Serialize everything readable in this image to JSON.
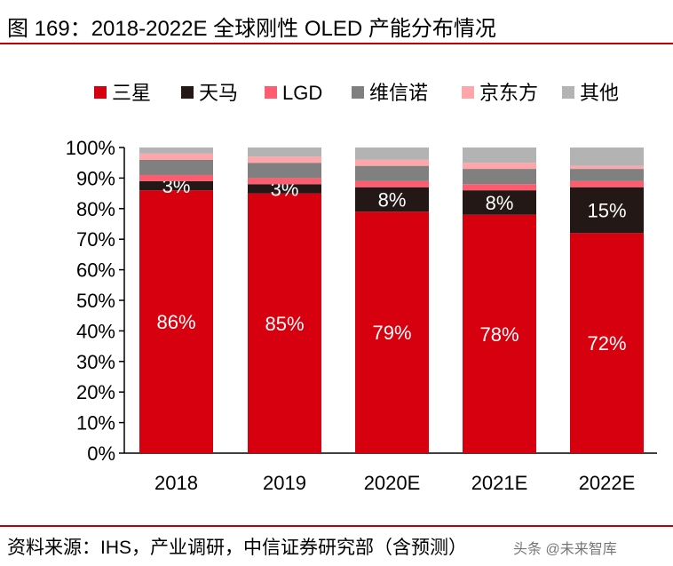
{
  "title": "图 169：2018-2022E 全球刚性 OLED 产能分布情况",
  "source": "资料来源：IHS，产业调研，中信证券研究部（含预测）",
  "watermark": "头条 @未来智库",
  "chart_data": {
    "type": "bar",
    "stacked": true,
    "categories": [
      "2018",
      "2019",
      "2020E",
      "2021E",
      "2022E"
    ],
    "ylim": [
      0,
      100
    ],
    "yticks": [
      "0%",
      "10%",
      "20%",
      "30%",
      "40%",
      "50%",
      "60%",
      "70%",
      "80%",
      "90%",
      "100%"
    ],
    "legend_position": "top",
    "grid": false,
    "series": [
      {
        "name": "三星",
        "color": "#d7000f",
        "values": [
          86,
          85,
          79,
          78,
          72
        ],
        "labels": [
          "86%",
          "85%",
          "79%",
          "78%",
          "72%"
        ]
      },
      {
        "name": "天马",
        "color": "#231815",
        "values": [
          3,
          3,
          8,
          8,
          15
        ],
        "labels": [
          "3%",
          "3%",
          "8%",
          "8%",
          "15%"
        ]
      },
      {
        "name": "LGD",
        "color": "#ff5c6f",
        "values": [
          2,
          2,
          2,
          2,
          2
        ]
      },
      {
        "name": "维信诺",
        "color": "#808080",
        "values": [
          5,
          5,
          5,
          5,
          4
        ]
      },
      {
        "name": "京东方",
        "color": "#ffa6ab",
        "values": [
          2,
          2,
          2,
          2,
          1
        ]
      },
      {
        "name": "其他",
        "color": "#b3b3b3",
        "values": [
          2,
          3,
          4,
          5,
          6
        ]
      }
    ]
  }
}
